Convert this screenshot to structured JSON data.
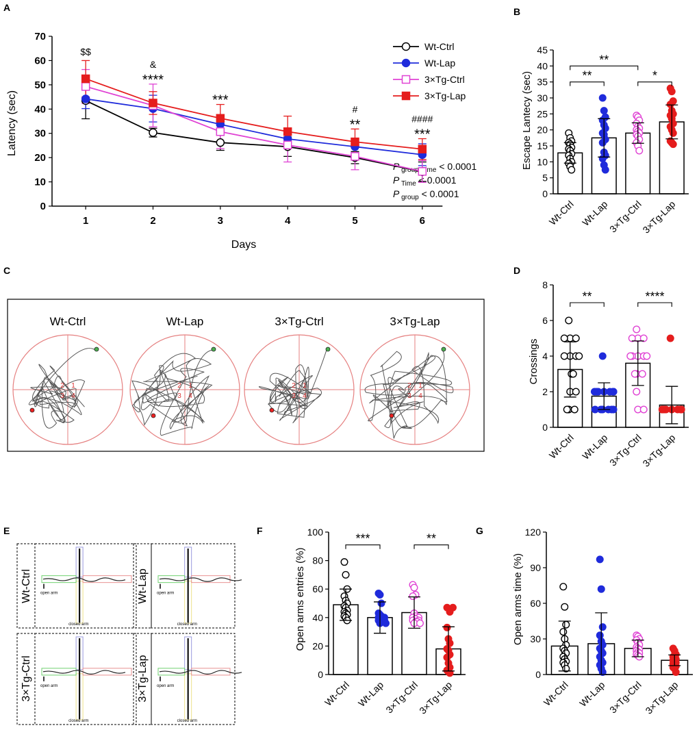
{
  "colors": {
    "wt_ctrl": "#000000",
    "wt_lap": "#1f2bdb",
    "tg_ctrl": "#e043d4",
    "tg_lap": "#e51d1d",
    "maze": "#e57f7f",
    "path": "#555555"
  },
  "panels": {
    "A": "A",
    "B": "B",
    "C": "C",
    "D": "D",
    "E": "E",
    "F": "F",
    "G": "G"
  },
  "chart_data": [
    {
      "id": "A",
      "type": "line",
      "title": "",
      "xlabel": "Days",
      "ylabel": "Latency (sec)",
      "x": [
        1,
        2,
        3,
        4,
        5,
        6
      ],
      "xlim": [
        0.5,
        6.5
      ],
      "ylim": [
        0,
        70
      ],
      "yticks": [
        "0",
        "10",
        "20",
        "30",
        "40",
        "50",
        "60",
        "70"
      ],
      "xticks": [
        "1",
        "2",
        "3",
        "4",
        "5",
        "6"
      ],
      "series": [
        {
          "name": "Wt-Ctrl",
          "values": [
            43.5,
            30.3,
            26.2,
            24.5,
            20.0,
            14.2
          ],
          "err": [
            7.5,
            1.8,
            3.2,
            4.0,
            2.5,
            4.0
          ],
          "marker": "open-circle",
          "colorKey": "wt_ctrl"
        },
        {
          "name": "Wt-Lap",
          "values": [
            44.2,
            40.2,
            33.7,
            27.7,
            24.5,
            21.2
          ],
          "err": [
            4,
            5.5,
            4,
            4,
            2.5,
            4.5
          ],
          "marker": "filled-circle",
          "colorKey": "wt_lap"
        },
        {
          "name": "3×Tg-Ctrl",
          "values": [
            49.3,
            41.5,
            30.7,
            25.2,
            20.5,
            14.3
          ],
          "err": [
            7.0,
            8.8,
            7.0,
            7.0,
            5.5,
            4.5
          ],
          "marker": "open-square",
          "colorKey": "tg_ctrl"
        },
        {
          "name": "3×Tg-Lap",
          "values": [
            52.5,
            42.5,
            36.2,
            30.7,
            26.5,
            23.5
          ],
          "err": [
            7.5,
            4.7,
            5.7,
            6.4,
            5.3,
            4.3
          ],
          "marker": "filled-square",
          "colorKey": "tg_lap"
        }
      ],
      "annotations": [
        {
          "day": 1,
          "lines": [
            "$$"
          ]
        },
        {
          "day": 2,
          "lines": [
            "&",
            "****"
          ]
        },
        {
          "day": 3,
          "lines": [
            "***"
          ]
        },
        {
          "day": 5,
          "lines": [
            "#",
            "**"
          ]
        },
        {
          "day": 6,
          "lines": [
            "####",
            "***"
          ]
        }
      ],
      "stats": [
        {
          "p": "P",
          "sub": "group*Time",
          "rest": " < 0.0001"
        },
        {
          "p": "P",
          "sub": "Time",
          "rest": " < 0.0001"
        },
        {
          "p": "P",
          "sub": "group",
          "rest": " < 0.0001"
        }
      ]
    },
    {
      "id": "B",
      "type": "bar",
      "ylabel": "Escape Lantecy (sec)",
      "ylim": [
        0,
        45
      ],
      "yticks": [
        "0",
        "5",
        "10",
        "15",
        "20",
        "25",
        "30",
        "35",
        "40",
        "45"
      ],
      "categories": [
        "Wt-Ctrl",
        "Wt-Lap",
        "3×Tg-Ctrl",
        "3×Tg-Lap"
      ],
      "values": [
        12.8,
        17.5,
        19.0,
        22.5
      ],
      "err": [
        3.2,
        6.0,
        3.2,
        5.3
      ],
      "points": [
        [
          19,
          17.5,
          16.5,
          16,
          15.5,
          14.5,
          14,
          13.5,
          12.5,
          12,
          11,
          10,
          9.5,
          8.5,
          7.5
        ],
        [
          30,
          26,
          24,
          23,
          21.5,
          20.5,
          19,
          18.5,
          17,
          16,
          13,
          12,
          11,
          9,
          7.5
        ],
        [
          24.5,
          24,
          23,
          22,
          21,
          20.5,
          20,
          19.5,
          19,
          18.5,
          18,
          17,
          16,
          15,
          13.5
        ],
        [
          33,
          32,
          29,
          28,
          26,
          25,
          24.5,
          23.5,
          22,
          21,
          20,
          19,
          16.5,
          16,
          15.5
        ]
      ],
      "brackets": [
        {
          "a": 0,
          "b": 2,
          "y": 40,
          "label": "**"
        },
        {
          "a": 0,
          "b": 1,
          "y": 35,
          "label": "**"
        },
        {
          "a": 2,
          "b": 3,
          "y": 35,
          "label": "*"
        }
      ]
    },
    {
      "id": "D",
      "type": "bar",
      "ylabel": "Crossings",
      "ylim": [
        0,
        8
      ],
      "yticks": [
        "0",
        "2",
        "4",
        "6",
        "8"
      ],
      "categories": [
        "Wt-Ctrl",
        "Wt-Lap",
        "3×Tg-Ctrl",
        "3×Tg-Lap"
      ],
      "values": [
        3.25,
        1.75,
        3.6,
        1.25
      ],
      "err": [
        1.55,
        0.75,
        1.25,
        1.05
      ],
      "points": [
        [
          6,
          5,
          5,
          5,
          4,
          4,
          4,
          4,
          3,
          3,
          2,
          2,
          1,
          1,
          1
        ],
        [
          4,
          2,
          2,
          2,
          2,
          2,
          2,
          2,
          2,
          1,
          1,
          1,
          1,
          1,
          1
        ],
        [
          5.5,
          5,
          5,
          5,
          4,
          4,
          4,
          4,
          4,
          3,
          3,
          3,
          2,
          1,
          1
        ],
        [
          5,
          1,
          1,
          1,
          1,
          1,
          1,
          1,
          1,
          1,
          1,
          1,
          1,
          1,
          1
        ]
      ],
      "brackets": [
        {
          "a": 0,
          "b": 1,
          "y": 7,
          "label": "**"
        },
        {
          "a": 2,
          "b": 3,
          "y": 7,
          "label": "****"
        }
      ]
    },
    {
      "id": "F",
      "type": "bar",
      "ylabel": "Open arms entries (%)",
      "ylim": [
        0,
        100
      ],
      "yticks": [
        "0",
        "20",
        "40",
        "60",
        "80",
        "100"
      ],
      "categories": [
        "Wt-Ctrl",
        "Wt-Lap",
        "3×Tg-Ctrl",
        "3×Tg-Lap"
      ],
      "values": [
        49,
        40,
        43.5,
        18
      ],
      "err": [
        11,
        11,
        11,
        15.5
      ],
      "points": [
        [
          79,
          70,
          60,
          55,
          52,
          50,
          48,
          47,
          45,
          44,
          43,
          42,
          41,
          40,
          38
        ],
        [
          57,
          56,
          50,
          43,
          42,
          41,
          40,
          40,
          39,
          38,
          38,
          37,
          37,
          36,
          36
        ],
        [
          63,
          61,
          56,
          55,
          43,
          41,
          40,
          40,
          39,
          38,
          38,
          37,
          37,
          36,
          36
        ],
        [
          47,
          47,
          44,
          33,
          25,
          22,
          18,
          17,
          14,
          12,
          8,
          5,
          3,
          2,
          1
        ]
      ],
      "brackets": [
        {
          "a": 0,
          "b": 1,
          "y": 91,
          "label": "***"
        },
        {
          "a": 2,
          "b": 3,
          "y": 91,
          "label": "**"
        }
      ]
    },
    {
      "id": "G",
      "type": "bar",
      "ylabel": "Open arms time (%)",
      "ylim": [
        0,
        120
      ],
      "yticks": [
        "0",
        "30",
        "60",
        "90",
        "120"
      ],
      "categories": [
        "Wt-Ctrl",
        "Wt-Lap",
        "3×Tg-Ctrl",
        "3×Tg-Lap"
      ],
      "values": [
        24,
        26,
        22,
        12
      ],
      "err": [
        21,
        26,
        7,
        4.5
      ],
      "points": [
        [
          74,
          57,
          42,
          36,
          30,
          25,
          22,
          20,
          18,
          15,
          13,
          11,
          10,
          8,
          5
        ],
        [
          97,
          72,
          40,
          33,
          28,
          25,
          22,
          20,
          18,
          15,
          12,
          10,
          8,
          5,
          2
        ],
        [
          33,
          32,
          30,
          29,
          27,
          25,
          23,
          22,
          21,
          20,
          19,
          18,
          17,
          16,
          15
        ],
        [
          22,
          20,
          17,
          15,
          14,
          13,
          12,
          11,
          10,
          9,
          8,
          7,
          6,
          5,
          2
        ]
      ],
      "brackets": []
    }
  ],
  "trajectories": {
    "labels": [
      "Wt-Ctrl",
      "Wt-Lap",
      "3×Tg-Ctrl",
      "3×Tg-Lap"
    ],
    "quadrants": [
      "2",
      "1",
      "3",
      "4"
    ]
  },
  "maze": {
    "rows": [
      [
        {
          "label": "Wt-Ctrl"
        },
        {
          "label": "Wt-Lap"
        }
      ],
      [
        {
          "label": "3×Tg-Ctrl"
        },
        {
          "label": "3×Tg-Lap"
        }
      ]
    ],
    "open_arm": "open arm",
    "closed_arm": "closed arm"
  }
}
